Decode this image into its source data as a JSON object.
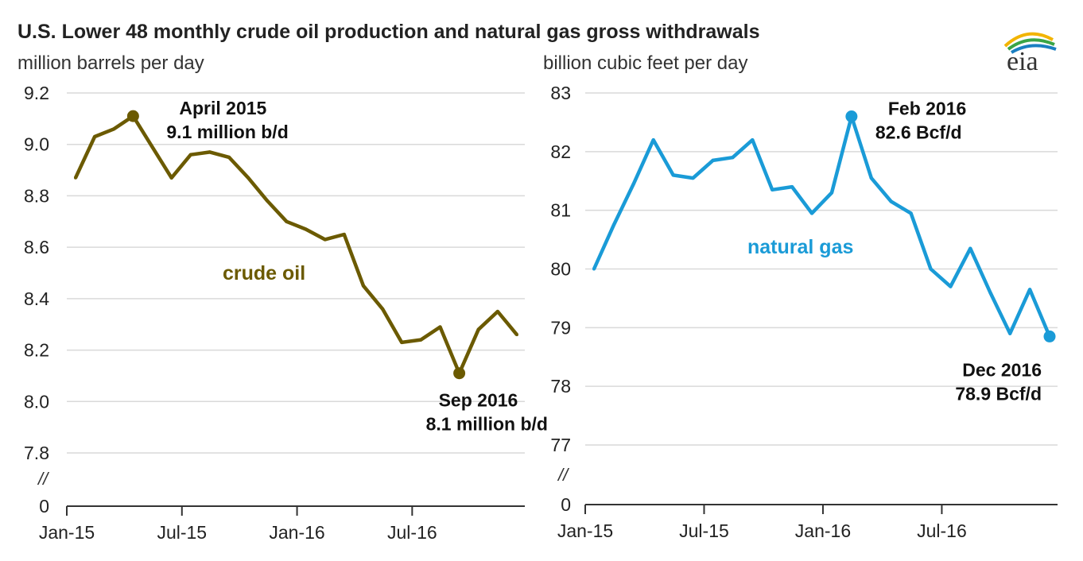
{
  "title": "U.S. Lower 48 monthly crude oil production and natural gas gross withdrawals",
  "logo_text": "eia",
  "axis_break": "//",
  "chart_data": [
    {
      "type": "line",
      "title": "U.S. Lower 48 monthly crude oil production and natural gas gross withdrawals",
      "ylabel": "million barrels per day",
      "xlabel": "",
      "color": "#6b5a00",
      "series_label": "crude oil",
      "x": [
        "Jan-15",
        "Feb-15",
        "Mar-15",
        "Apr-15",
        "May-15",
        "Jun-15",
        "Jul-15",
        "Aug-15",
        "Sep-15",
        "Oct-15",
        "Nov-15",
        "Dec-15",
        "Jan-16",
        "Feb-16",
        "Mar-16",
        "Apr-16",
        "May-16",
        "Jun-16",
        "Jul-16",
        "Aug-16",
        "Sep-16",
        "Oct-16",
        "Nov-16",
        "Dec-16"
      ],
      "x_tick_labels": [
        "Jan-15",
        "Jul-15",
        "Jan-16",
        "Jul-16"
      ],
      "y_ticks": [
        "9.2",
        "9.0",
        "8.8",
        "8.6",
        "8.4",
        "8.2",
        "8.0",
        "7.8",
        "0"
      ],
      "series": [
        {
          "name": "crude oil",
          "values": [
            8.87,
            9.03,
            9.06,
            9.11,
            8.99,
            8.87,
            8.96,
            8.97,
            8.95,
            8.87,
            8.78,
            8.7,
            8.67,
            8.63,
            8.65,
            8.45,
            8.36,
            8.23,
            8.24,
            8.29,
            8.11,
            8.28,
            8.35,
            8.26
          ]
        }
      ],
      "annotations": [
        {
          "x": "Apr-15",
          "y": 9.11,
          "line1": "April 2015",
          "line2": "9.1 million b/d"
        },
        {
          "x": "Sep-16",
          "y": 8.11,
          "line1": "Sep 2016",
          "line2": "8.1 million b/d"
        }
      ],
      "ylim": [
        7.8,
        9.2
      ],
      "axis_break_below": true,
      "grid": true
    },
    {
      "type": "line",
      "ylabel": "billion cubic feet per day",
      "xlabel": "",
      "color": "#1a9bd7",
      "series_label": "natural gas",
      "x": [
        "Jan-15",
        "Feb-15",
        "Mar-15",
        "Apr-15",
        "May-15",
        "Jun-15",
        "Jul-15",
        "Aug-15",
        "Sep-15",
        "Oct-15",
        "Nov-15",
        "Dec-15",
        "Jan-16",
        "Feb-16",
        "Mar-16",
        "Apr-16",
        "May-16",
        "Jun-16",
        "Jul-16",
        "Aug-16",
        "Sep-16",
        "Oct-16",
        "Nov-16",
        "Dec-16"
      ],
      "x_tick_labels": [
        "Jan-15",
        "Jul-15",
        "Jan-16",
        "Jul-16"
      ],
      "y_ticks": [
        "83",
        "82",
        "81",
        "80",
        "79",
        "78",
        "77",
        "0"
      ],
      "series": [
        {
          "name": "natural gas",
          "values": [
            80.0,
            80.75,
            81.45,
            82.2,
            81.6,
            81.55,
            81.85,
            81.9,
            82.2,
            81.35,
            81.4,
            80.95,
            81.3,
            82.6,
            81.55,
            81.15,
            80.95,
            80.0,
            79.7,
            80.35,
            79.6,
            78.9,
            79.65,
            78.85
          ]
        }
      ],
      "annotations": [
        {
          "x": "Feb-16",
          "y": 82.6,
          "line1": "Feb 2016",
          "line2": "82.6 Bcf/d"
        },
        {
          "x": "Dec-16",
          "y": 78.85,
          "line1": "Dec 2016",
          "line2": "78.9 Bcf/d"
        }
      ],
      "ylim": [
        77,
        83
      ],
      "axis_break_below": true,
      "grid": true
    }
  ]
}
